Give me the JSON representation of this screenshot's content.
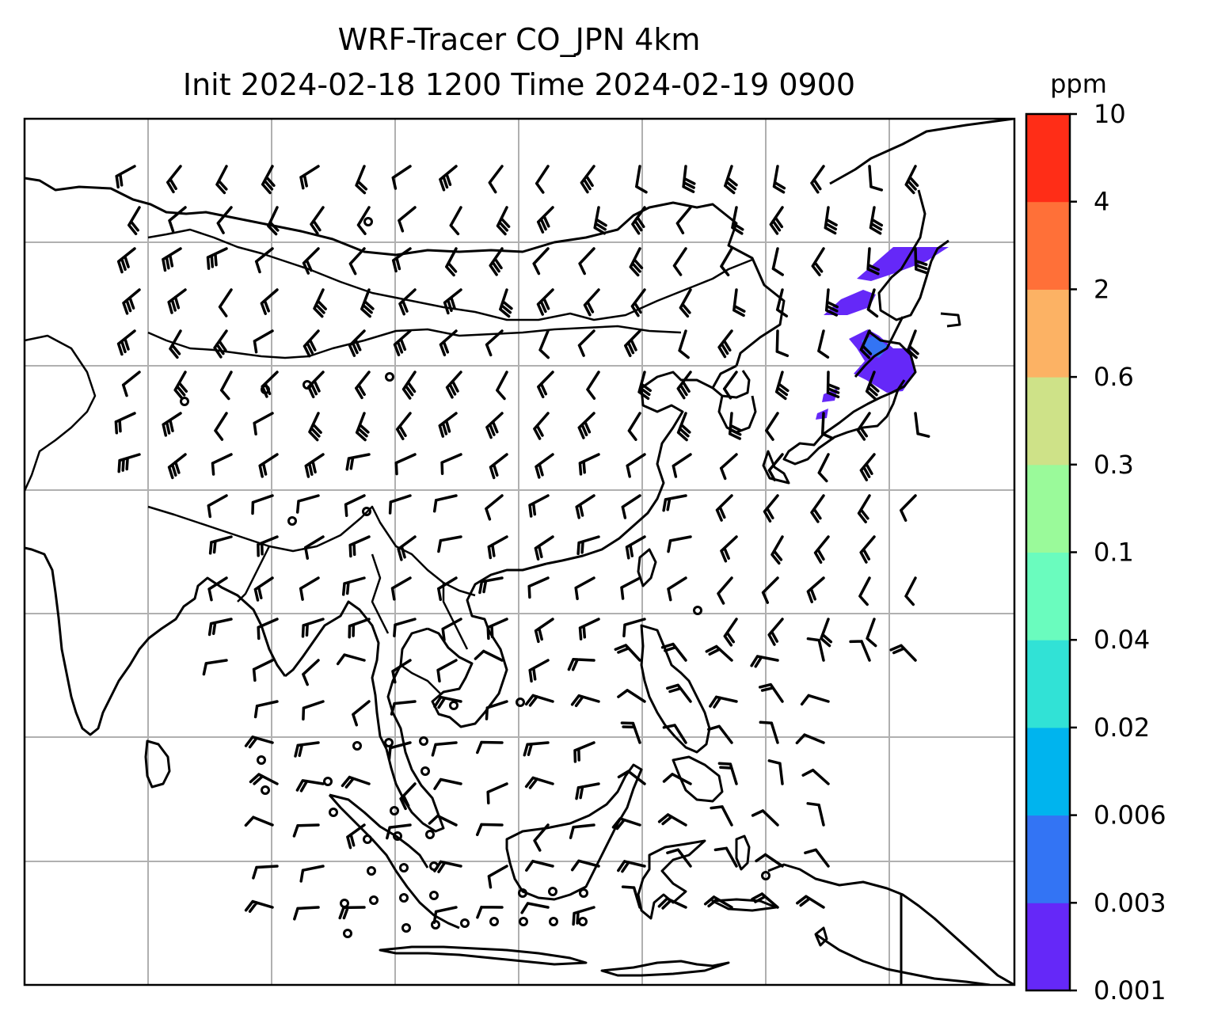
{
  "title": {
    "line1": "WRF-Tracer CO_JPN 4km",
    "line2": "Init 2024-02-18 1200 Time 2024-02-19 0900"
  },
  "colorbar": {
    "unit": "ppm",
    "levels": [
      {
        "label": "0.001",
        "color": "#6528f8"
      },
      {
        "label": "0.003",
        "color": "#3374f4"
      },
      {
        "label": "0.006",
        "color": "#00b4ee"
      },
      {
        "label": "0.02",
        "color": "#31e2d6"
      },
      {
        "label": "0.04",
        "color": "#6afcbe"
      },
      {
        "label": "0.1",
        "color": "#9afa9a"
      },
      {
        "label": "0.3",
        "color": "#cee288"
      },
      {
        "label": "0.6",
        "color": "#fcb264"
      },
      {
        "label": "2",
        "color": "#ff7038"
      },
      {
        "label": "4",
        "color": "#ff2d17"
      },
      {
        "label": "10",
        "color": null
      }
    ]
  },
  "map": {
    "gridlines": true,
    "coastline_color": "#000000",
    "wind_barbs": true,
    "plume_region": "northeast (Japan)"
  }
}
